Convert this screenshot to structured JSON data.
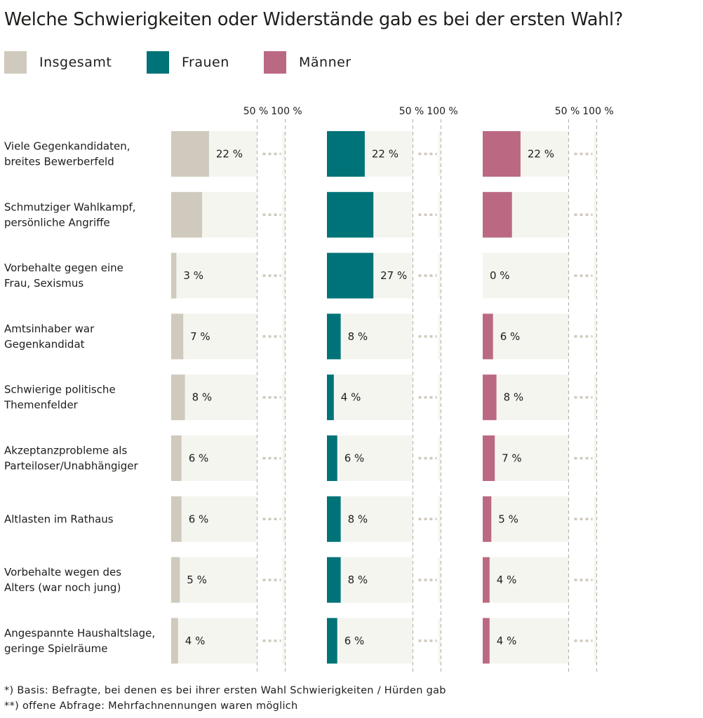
{
  "title": "Welche Schwierigkeiten oder Widerstände gab es bei der ersten Wahl?",
  "colors": {
    "Insgesamt": "#cfcabd",
    "Frauen": "#007378",
    "Männer": "#bb6982",
    "track": "#f5f5f0",
    "dashed_gridline": "#b0ada5",
    "gap_dots": "#cfcabd"
  },
  "footnotes": [
    "*) Basis: Befragte, bei denen es bei ihrer ersten Wahl Schwierigkeiten / Hürden gab",
    "**) offene Abfrage: Mehrfachnennungen waren möglich"
  ],
  "chart_data": {
    "type": "bar",
    "orientation": "horizontal",
    "title": "Welche Schwierigkeiten oder Widerstände gab es bei der ersten Wahl?",
    "axis_tick_labels": [
      "50 %",
      "100 %"
    ],
    "axis_ticks": [
      50,
      100
    ],
    "xlim": [
      0,
      100
    ],
    "value_unit": "%",
    "axis_break_between_50_and_100": true,
    "gridlines": "dashed at 50 % and 100 %",
    "legend_position": "top-left",
    "categories": [
      [
        "Viele Gegenkandidaten,",
        "breites Bewerberfeld"
      ],
      [
        "Schmutziger Wahlkampf,",
        "persönliche Angriffe"
      ],
      [
        "Vorbehalte gegen eine",
        "Frau, Sexismus"
      ],
      [
        "Amtsinhaber war",
        "Gegenkandidat"
      ],
      [
        "Schwierige politische",
        "Themenfelder"
      ],
      [
        "Akzeptanzprobleme als",
        "Parteiloser/Unabhängiger"
      ],
      [
        "Altlasten im Rathaus"
      ],
      [
        "Vorbehalte wegen des",
        "Alters (war noch jung)"
      ],
      [
        "Angespannte Haushaltslage,",
        "geringe Spielräume"
      ]
    ],
    "series": [
      {
        "name": "Insgesamt",
        "color": "#cfcabd",
        "values": [
          22,
          18,
          3,
          7,
          8,
          6,
          6,
          5,
          4
        ],
        "labels": [
          "22 %",
          "",
          "3 %",
          "7 %",
          "8 %",
          "6 %",
          "6 %",
          "5 %",
          "4 %"
        ]
      },
      {
        "name": "Frauen",
        "color": "#007378",
        "values": [
          22,
          27,
          27,
          8,
          4,
          6,
          8,
          8,
          6
        ],
        "labels": [
          "22 %",
          "",
          "27 %",
          "8 %",
          "4 %",
          "6 %",
          "8 %",
          "8 %",
          "6 %"
        ]
      },
      {
        "name": "Männer",
        "color": "#bb6982",
        "values": [
          22,
          17,
          0,
          6,
          8,
          7,
          5,
          4,
          4
        ],
        "labels": [
          "22 %",
          "",
          "0 %",
          "6 %",
          "8 %",
          "7 %",
          "5 %",
          "4 %",
          "4 %"
        ]
      }
    ]
  }
}
